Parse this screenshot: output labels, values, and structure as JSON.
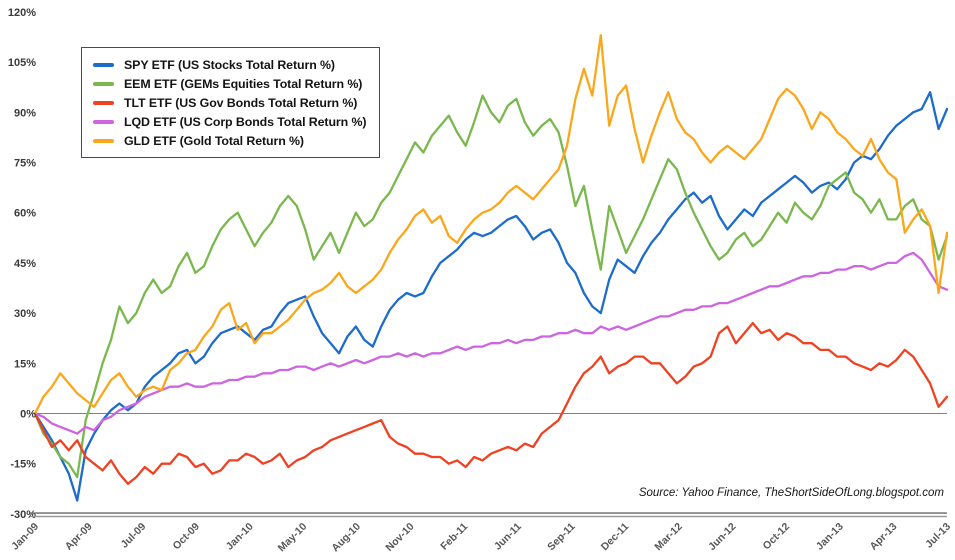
{
  "chart_data": {
    "type": "line",
    "title": "",
    "legend_position": "top-left",
    "grid": "zero-line-only",
    "background": "#ffffff",
    "ylim": [
      -30,
      120
    ],
    "y_ticks": [
      "120%",
      "105%",
      "90%",
      "75%",
      "60%",
      "45%",
      "30%",
      "15%",
      "0%",
      "-15%",
      "-30%"
    ],
    "y_tick_values": [
      120,
      105,
      90,
      75,
      60,
      45,
      30,
      15,
      0,
      -15,
      -30
    ],
    "x_tick_labels": [
      "Jan-09",
      "Apr-09",
      "Jul-09",
      "Oct-09",
      "Jan-10",
      "May-10",
      "Aug-10",
      "Nov-10",
      "Feb-11",
      "Jun-11",
      "Sep-11",
      "Dec-11",
      "Mar-12",
      "Jun-12",
      "Oct-12",
      "Jan-13",
      "Apr-13",
      "Jul-13"
    ],
    "x_sampling": "evenly spaced semi-monthly samples from Jan-09 to Jul-13",
    "axis_colors": {
      "zero_line": "#808080",
      "bottom_axis": "#7d7d7d"
    },
    "source_note": "Source: Yahoo Finance, TheShortSideOfLong.blogspot.com",
    "series": [
      {
        "id": "spy",
        "label": "SPY ETF (US Stocks Total Return %)",
        "color": "#1d6ccb",
        "values": [
          0,
          -4,
          -8,
          -13,
          -18,
          -26,
          -11,
          -6,
          -2,
          1,
          3,
          1,
          3,
          8,
          11,
          13,
          15,
          18,
          19,
          15,
          17,
          21,
          24,
          25,
          26,
          24,
          22,
          25,
          26,
          30,
          33,
          34,
          35,
          29,
          24,
          21,
          18,
          23,
          26,
          22,
          20,
          26,
          31,
          34,
          36,
          35,
          36,
          41,
          45,
          47,
          49,
          52,
          54,
          53,
          54,
          56,
          58,
          59,
          56,
          52,
          54,
          55,
          51,
          45,
          42,
          36,
          32,
          30,
          40,
          46,
          44,
          42,
          47,
          51,
          54,
          58,
          61,
          64,
          66,
          63,
          65,
          59,
          55,
          58,
          61,
          59,
          63,
          65,
          67,
          69,
          71,
          69,
          66,
          68,
          69,
          67,
          70,
          75,
          77,
          76,
          79,
          83,
          86,
          88,
          90,
          91,
          96,
          85,
          91
        ]
      },
      {
        "id": "eem",
        "label": "EEM ETF (GEMs Equities Total Return %)",
        "color": "#7ab84d",
        "values": [
          0,
          -6,
          -9,
          -13,
          -15,
          -19,
          -2,
          6,
          15,
          22,
          32,
          27,
          30,
          36,
          40,
          36,
          38,
          44,
          48,
          42,
          44,
          50,
          55,
          58,
          60,
          55,
          50,
          54,
          57,
          62,
          65,
          62,
          55,
          46,
          50,
          54,
          48,
          54,
          60,
          56,
          58,
          63,
          66,
          71,
          76,
          81,
          78,
          83,
          86,
          89,
          84,
          80,
          87,
          95,
          90,
          87,
          92,
          94,
          87,
          83,
          86,
          88,
          84,
          74,
          62,
          68,
          55,
          43,
          62,
          55,
          48,
          53,
          58,
          64,
          70,
          76,
          73,
          66,
          60,
          55,
          50,
          46,
          48,
          52,
          54,
          50,
          52,
          56,
          60,
          57,
          63,
          60,
          58,
          62,
          68,
          70,
          72,
          66,
          64,
          60,
          64,
          58,
          58,
          62,
          64,
          58,
          56,
          46,
          53
        ]
      },
      {
        "id": "tlt",
        "label": "TLT ETF (US Gov Bonds Total Return %)",
        "color": "#ee4223",
        "values": [
          0,
          -5,
          -10,
          -8,
          -11,
          -8,
          -13,
          -15,
          -17,
          -14,
          -18,
          -21,
          -19,
          -16,
          -18,
          -15,
          -15,
          -12,
          -13,
          -16,
          -15,
          -18,
          -17,
          -14,
          -14,
          -12,
          -13,
          -15,
          -14,
          -12,
          -16,
          -14,
          -13,
          -11,
          -10,
          -8,
          -7,
          -6,
          -5,
          -4,
          -3,
          -2,
          -7,
          -9,
          -10,
          -12,
          -12,
          -13,
          -13,
          -15,
          -14,
          -16,
          -13,
          -14,
          -12,
          -11,
          -10,
          -11,
          -9,
          -10,
          -6,
          -4,
          -2,
          3,
          8,
          12,
          14,
          17,
          12,
          14,
          15,
          17,
          17,
          15,
          15,
          12,
          9,
          11,
          14,
          15,
          17,
          24,
          26,
          21,
          24,
          27,
          24,
          25,
          22,
          24,
          23,
          21,
          21,
          19,
          19,
          17,
          17,
          15,
          14,
          13,
          15,
          14,
          16,
          19,
          17,
          13,
          9,
          2,
          5
        ]
      },
      {
        "id": "lqd",
        "label": "LQD ETF (US Corp Bonds Total Return %)",
        "color": "#cd65e0",
        "values": [
          0,
          -1,
          -3,
          -4,
          -5,
          -6,
          -4,
          -5,
          -2,
          -1,
          1,
          2,
          3,
          5,
          6,
          7,
          8,
          8,
          9,
          8,
          8,
          9,
          9,
          10,
          10,
          11,
          11,
          12,
          12,
          13,
          13,
          14,
          14,
          13,
          14,
          15,
          14,
          15,
          16,
          15,
          16,
          17,
          17,
          18,
          17,
          18,
          17,
          18,
          18,
          19,
          20,
          19,
          20,
          20,
          21,
          21,
          22,
          21,
          22,
          22,
          23,
          23,
          24,
          24,
          25,
          24,
          24,
          26,
          25,
          26,
          25,
          26,
          27,
          28,
          29,
          29,
          30,
          31,
          31,
          32,
          32,
          33,
          33,
          34,
          35,
          36,
          37,
          38,
          38,
          39,
          40,
          41,
          41,
          42,
          42,
          43,
          43,
          44,
          44,
          43,
          44,
          45,
          45,
          47,
          48,
          46,
          42,
          38,
          37
        ]
      },
      {
        "id": "gld",
        "label": "GLD ETF (Gold Total Return %)",
        "color": "#fba71b",
        "values": [
          0,
          5,
          8,
          12,
          9,
          6,
          4,
          2,
          6,
          10,
          12,
          8,
          5,
          7,
          8,
          7,
          13,
          15,
          18,
          19,
          23,
          26,
          31,
          33,
          25,
          27,
          21,
          24,
          24,
          26,
          28,
          31,
          34,
          36,
          37,
          39,
          42,
          38,
          36,
          38,
          40,
          43,
          48,
          52,
          55,
          59,
          61,
          57,
          59,
          53,
          51,
          55,
          58,
          60,
          61,
          63,
          66,
          68,
          66,
          64,
          67,
          70,
          73,
          80,
          94,
          103,
          95,
          113,
          86,
          95,
          98,
          85,
          75,
          83,
          90,
          96,
          88,
          84,
          82,
          78,
          75,
          78,
          80,
          78,
          76,
          79,
          82,
          88,
          94,
          97,
          95,
          91,
          85,
          90,
          88,
          84,
          82,
          79,
          77,
          82,
          76,
          72,
          70,
          54,
          58,
          61,
          56,
          36,
          54
        ]
      }
    ]
  }
}
